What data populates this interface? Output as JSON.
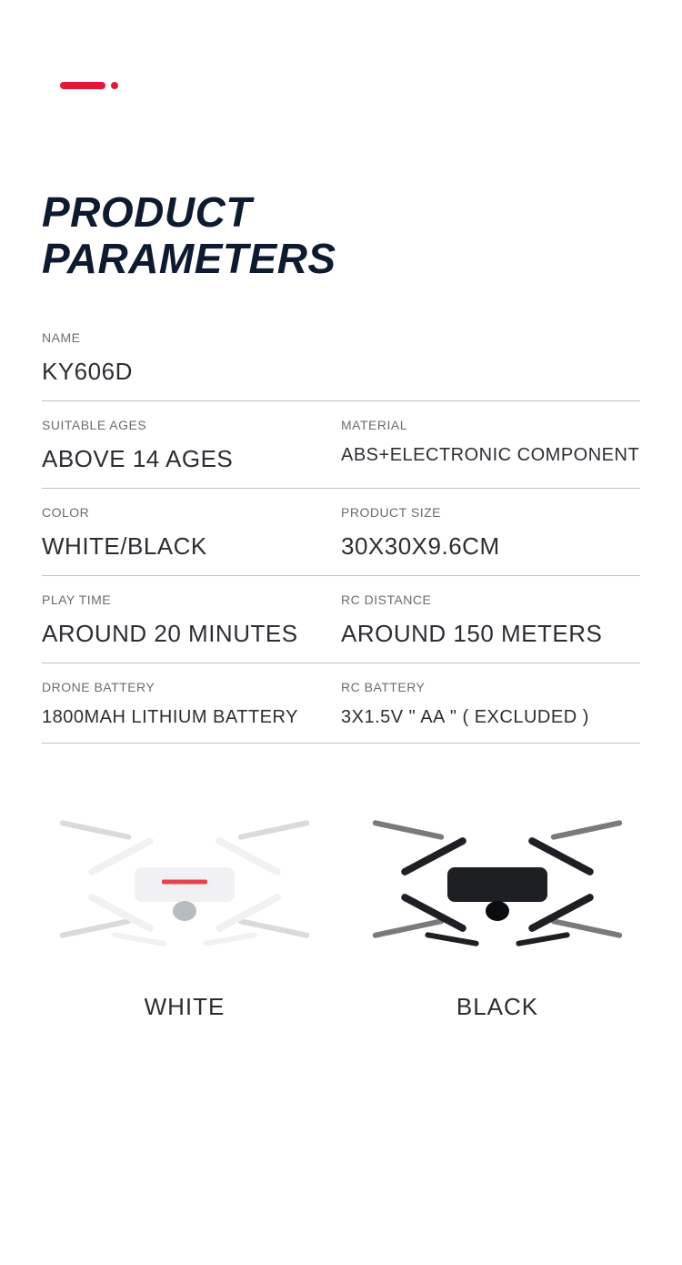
{
  "colors": {
    "accent": "#e4163a",
    "heading": "#0e1a2f",
    "label": "#6a6c70",
    "value": "#2c2e33",
    "divider": "#bfc1c5",
    "white_drone_body": "#f1f1f3",
    "white_drone_dark": "#b8bbc0",
    "white_drone_stripe": "#e7424f",
    "black_drone_body": "#1d1f22",
    "black_drone_dark": "#0b0c0e"
  },
  "typography": {
    "heading_fontsize": 46,
    "label_fontsize": 14,
    "value_fontsize_large": 26,
    "value_fontsize_small": 20,
    "image_label_fontsize": 26
  },
  "heading": {
    "line1": "PRODUCT",
    "line2": "PARAMETERS"
  },
  "specs": {
    "name": {
      "label": "NAME",
      "value": "KY606D"
    },
    "ages": {
      "label": "SUITABLE AGES",
      "value": "ABOVE 14 AGES"
    },
    "material": {
      "label": "MATERIAL",
      "value": "ABS+ELECTRONIC COMPONENT"
    },
    "color": {
      "label": "COLOR",
      "value": "WHITE/BLACK"
    },
    "size": {
      "label": "PRODUCT SIZE",
      "value": "30X30X9.6CM"
    },
    "playtime": {
      "label": "PLAY TIME",
      "value": "AROUND 20 MINUTES"
    },
    "rcdistance": {
      "label": "RC DISTANCE",
      "value": "AROUND 150 METERS"
    },
    "dronebattery": {
      "label": "DRONE BATTERY",
      "value": "1800MAH LITHIUM BATTERY"
    },
    "rcbattery": {
      "label": "RC BATTERY",
      "value": "3X1.5V \" AA \" ( EXCLUDED )"
    }
  },
  "variants": {
    "white": "WHITE",
    "black": "BLACK"
  }
}
